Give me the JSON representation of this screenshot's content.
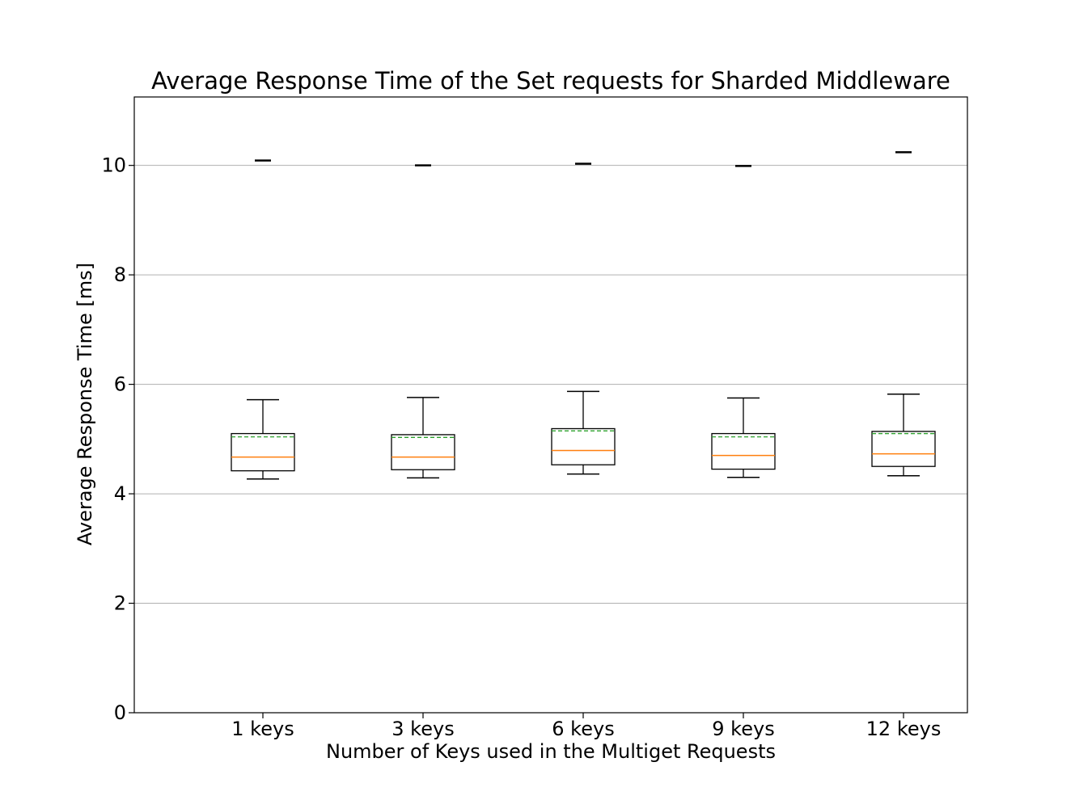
{
  "chart_data": {
    "type": "box",
    "title": "Average Response Time of the Set requests for Sharded Middleware",
    "xlabel": "Number of Keys used in the Multiget Requests",
    "ylabel": "Average Response Time [ms]",
    "ylim": [
      0,
      11.25
    ],
    "yticks": [
      "0",
      "2",
      "4",
      "6",
      "8",
      "10"
    ],
    "grid": "horizontal",
    "colors": {
      "box": "#000000",
      "median": "#ff7f0e",
      "mean": "#2ca02c",
      "grid": "#b0b0b0"
    },
    "categories": [
      "1 keys",
      "3 keys",
      "6 keys",
      "9 keys",
      "12 keys"
    ],
    "boxes": [
      {
        "whisker_low": 4.27,
        "q1": 4.42,
        "median": 4.67,
        "mean": 5.04,
        "q3": 5.1,
        "whisker_high": 5.72,
        "outlier": 10.09
      },
      {
        "whisker_low": 4.29,
        "q1": 4.44,
        "median": 4.67,
        "mean": 5.03,
        "q3": 5.08,
        "whisker_high": 5.76,
        "outlier": 10.0
      },
      {
        "whisker_low": 4.36,
        "q1": 4.53,
        "median": 4.79,
        "mean": 5.15,
        "q3": 5.19,
        "whisker_high": 5.87,
        "outlier": 10.03
      },
      {
        "whisker_low": 4.3,
        "q1": 4.45,
        "median": 4.7,
        "mean": 5.04,
        "q3": 5.1,
        "whisker_high": 5.75,
        "outlier": 9.99
      },
      {
        "whisker_low": 4.33,
        "q1": 4.5,
        "median": 4.73,
        "mean": 5.1,
        "q3": 5.14,
        "whisker_high": 5.82,
        "outlier": 10.24
      }
    ]
  }
}
